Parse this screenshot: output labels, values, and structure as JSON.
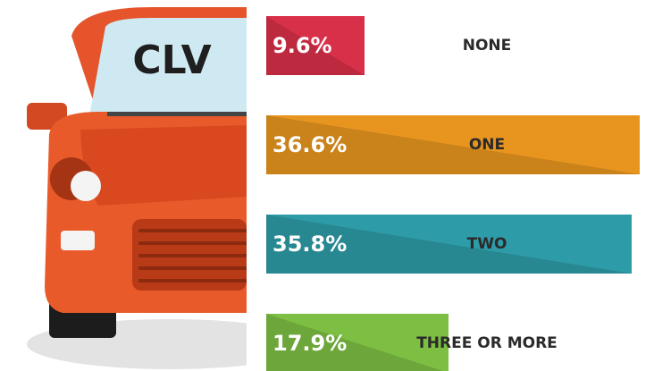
{
  "chart_data": {
    "type": "bar",
    "orientation": "horizontal",
    "title": "CLV",
    "categories": [
      "NONE",
      "ONE",
      "TWO",
      "THREE OR MORE"
    ],
    "values": [
      9.6,
      36.6,
      35.8,
      17.9
    ],
    "value_labels": [
      "9.6%",
      "36.6%",
      "35.8%",
      "17.9%"
    ],
    "colors": [
      "#d9304a",
      "#e8951f",
      "#2e9ca8",
      "#7dbf43"
    ]
  }
}
